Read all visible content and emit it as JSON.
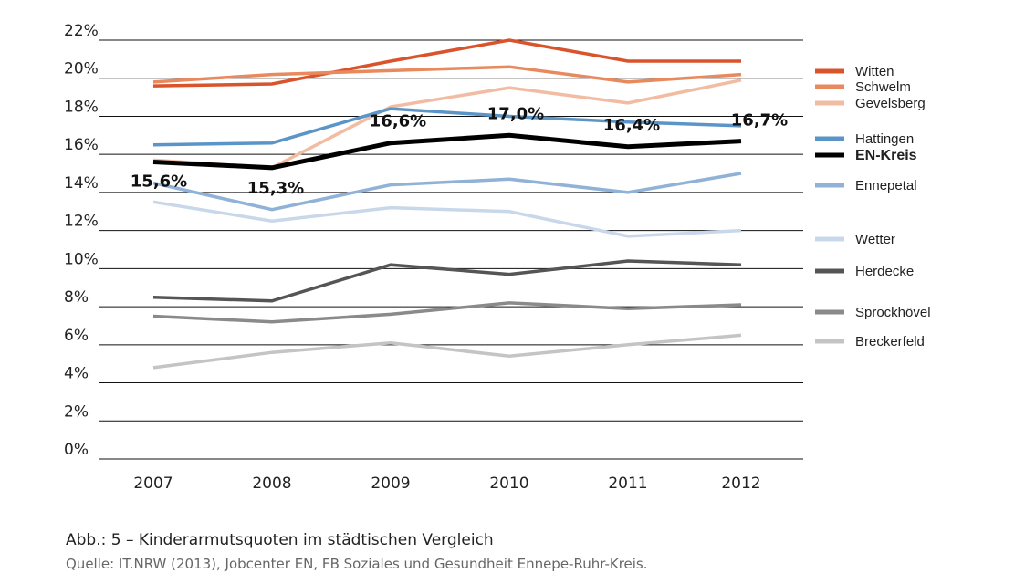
{
  "chart_data": {
    "type": "line",
    "x": [
      "2007",
      "2008",
      "2009",
      "2010",
      "2011",
      "2012"
    ],
    "ylim": [
      0,
      22
    ],
    "yticks": [
      "0%",
      "2%",
      "4%",
      "6%",
      "8%",
      "10%",
      "12%",
      "14%",
      "16%",
      "18%",
      "20%",
      "22%"
    ],
    "grid": true,
    "legend_position": "right",
    "series": [
      {
        "name": "Witten",
        "color": "#d9532b",
        "width": 3.5,
        "values": [
          19.6,
          19.7,
          20.9,
          22.0,
          20.9,
          20.9
        ]
      },
      {
        "name": "Schwelm",
        "color": "#e8895e",
        "width": 3.5,
        "values": [
          19.8,
          20.2,
          20.4,
          20.6,
          19.8,
          20.2
        ]
      },
      {
        "name": "Gevelsberg",
        "color": "#f2bca3",
        "width": 3.5,
        "values": [
          15.7,
          15.3,
          18.5,
          19.5,
          18.7,
          19.9
        ]
      },
      {
        "name": "Hattingen",
        "color": "#5b95c7",
        "width": 3.5,
        "values": [
          16.5,
          16.6,
          18.4,
          18.0,
          17.7,
          17.5
        ]
      },
      {
        "name": "EN-Kreis",
        "color": "#000000",
        "width": 5,
        "bold": true,
        "values": [
          15.6,
          15.3,
          16.6,
          17.0,
          16.4,
          16.7
        ],
        "labels": [
          "15,6%",
          "15,3%",
          "16,6%",
          "17,0%",
          "16,4%",
          "16,7%"
        ]
      },
      {
        "name": "Ennepetal",
        "color": "#8fb2d6",
        "width": 3.5,
        "values": [
          14.5,
          13.1,
          14.4,
          14.7,
          14.0,
          15.0
        ]
      },
      {
        "name": "Wetter",
        "color": "#c8d8ea",
        "width": 3.5,
        "values": [
          13.5,
          12.5,
          13.2,
          13.0,
          11.7,
          12.0
        ]
      },
      {
        "name": "Herdecke",
        "color": "#555555",
        "width": 3.5,
        "values": [
          8.5,
          8.3,
          10.2,
          9.7,
          10.4,
          10.2
        ]
      },
      {
        "name": "Sprockhövel",
        "color": "#8a8a8a",
        "width": 3.5,
        "values": [
          7.5,
          7.2,
          7.6,
          8.2,
          7.9,
          8.1
        ]
      },
      {
        "name": "Breckerfeld",
        "color": "#c4c4c4",
        "width": 3.5,
        "values": [
          4.8,
          5.6,
          6.1,
          5.4,
          6.0,
          6.5
        ]
      }
    ]
  },
  "caption": "Abb.: 5 – Kinderarmutsquoten im städtischen Vergleich",
  "source": "Quelle: IT.NRW (2013), Jobcenter EN, FB Soziales und Gesundheit Ennepe-Ruhr-Kreis."
}
